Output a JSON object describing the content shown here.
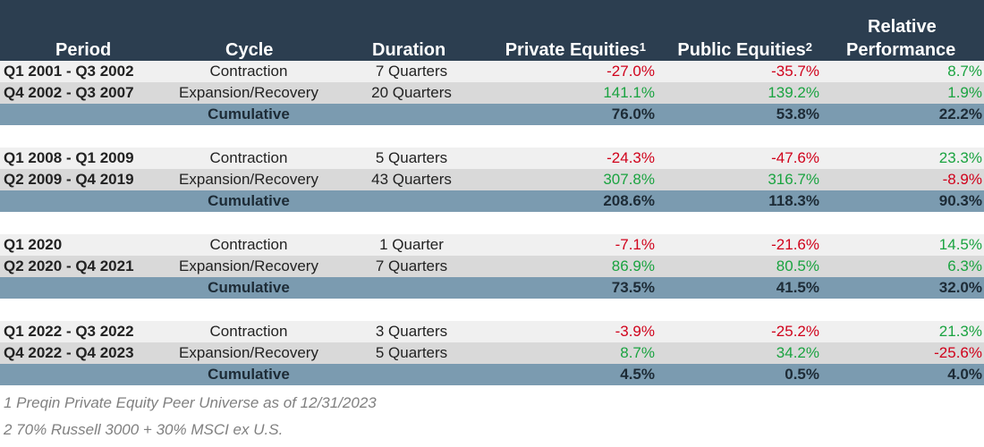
{
  "header": {
    "period": "Period",
    "cycle": "Cycle",
    "duration": "Duration",
    "private": "Private Equities",
    "private_sup": "1",
    "public": "Public Equities",
    "public_sup": "2",
    "relative_line1": "Relative",
    "relative_line2": "Performance"
  },
  "groups": [
    {
      "rows": [
        {
          "period": "Q1 2001 - Q3 2002",
          "cycle": "Contraction",
          "duration": "7 Quarters",
          "private": "-27.0%",
          "public": "-35.7%",
          "relative": "8.7%"
        },
        {
          "period": "Q4 2002 - Q3 2007",
          "cycle": "Expansion/Recovery",
          "duration": "20 Quarters",
          "private": "141.1%",
          "public": "139.2%",
          "relative": "1.9%"
        }
      ],
      "cumulative": {
        "label": "Cumulative",
        "private": "76.0%",
        "public": "53.8%",
        "relative": "22.2%"
      }
    },
    {
      "rows": [
        {
          "period": "Q1 2008 - Q1 2009",
          "cycle": "Contraction",
          "duration": "5 Quarters",
          "private": "-24.3%",
          "public": "-47.6%",
          "relative": "23.3%"
        },
        {
          "period": "Q2 2009 - Q4 2019",
          "cycle": "Expansion/Recovery",
          "duration": "43 Quarters",
          "private": "307.8%",
          "public": "316.7%",
          "relative": "-8.9%"
        }
      ],
      "cumulative": {
        "label": "Cumulative",
        "private": "208.6%",
        "public": "118.3%",
        "relative": "90.3%"
      }
    },
    {
      "rows": [
        {
          "period": "Q1 2020",
          "cycle": "Contraction",
          "duration": "1 Quarter",
          "private": "-7.1%",
          "public": "-21.6%",
          "relative": "14.5%"
        },
        {
          "period": "Q2 2020 - Q4 2021",
          "cycle": "Expansion/Recovery",
          "duration": "7 Quarters",
          "private": "86.9%",
          "public": "80.5%",
          "relative": "6.3%"
        }
      ],
      "cumulative": {
        "label": "Cumulative",
        "private": "73.5%",
        "public": "41.5%",
        "relative": "32.0%"
      }
    },
    {
      "rows": [
        {
          "period": "Q1 2022 - Q3 2022",
          "cycle": "Contraction",
          "duration": "3 Quarters",
          "private": "-3.9%",
          "public": "-25.2%",
          "relative": "21.3%"
        },
        {
          "period": "Q4 2022 - Q4 2023",
          "cycle": "Expansion/Recovery",
          "duration": "5 Quarters",
          "private": "8.7%",
          "public": "34.2%",
          "relative": "-25.6%"
        }
      ],
      "cumulative": {
        "label": "Cumulative",
        "private": "4.5%",
        "public": "0.5%",
        "relative": "4.0%"
      }
    }
  ],
  "footnotes": [
    "1 Preqin Private Equity Peer Universe as of 12/31/2023",
    "2 70% Russell 3000 + 30% MSCI ex U.S."
  ],
  "colors": {
    "header_bg": "#2c3e50",
    "cumulative_bg": "#7b9bb0",
    "negative": "#d0021b",
    "positive": "#1aa340"
  }
}
